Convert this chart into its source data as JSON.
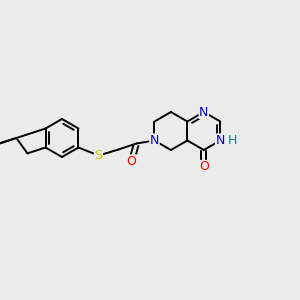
{
  "bg_color": "#ebebeb",
  "atom_colors": {
    "N": "#0000cc",
    "O": "#ff0000",
    "S": "#cccc00",
    "NH": "#008b8b",
    "C": "#000000"
  },
  "bond_color": "#000000",
  "bond_width": 1.4,
  "font_size_atom": 8.5
}
